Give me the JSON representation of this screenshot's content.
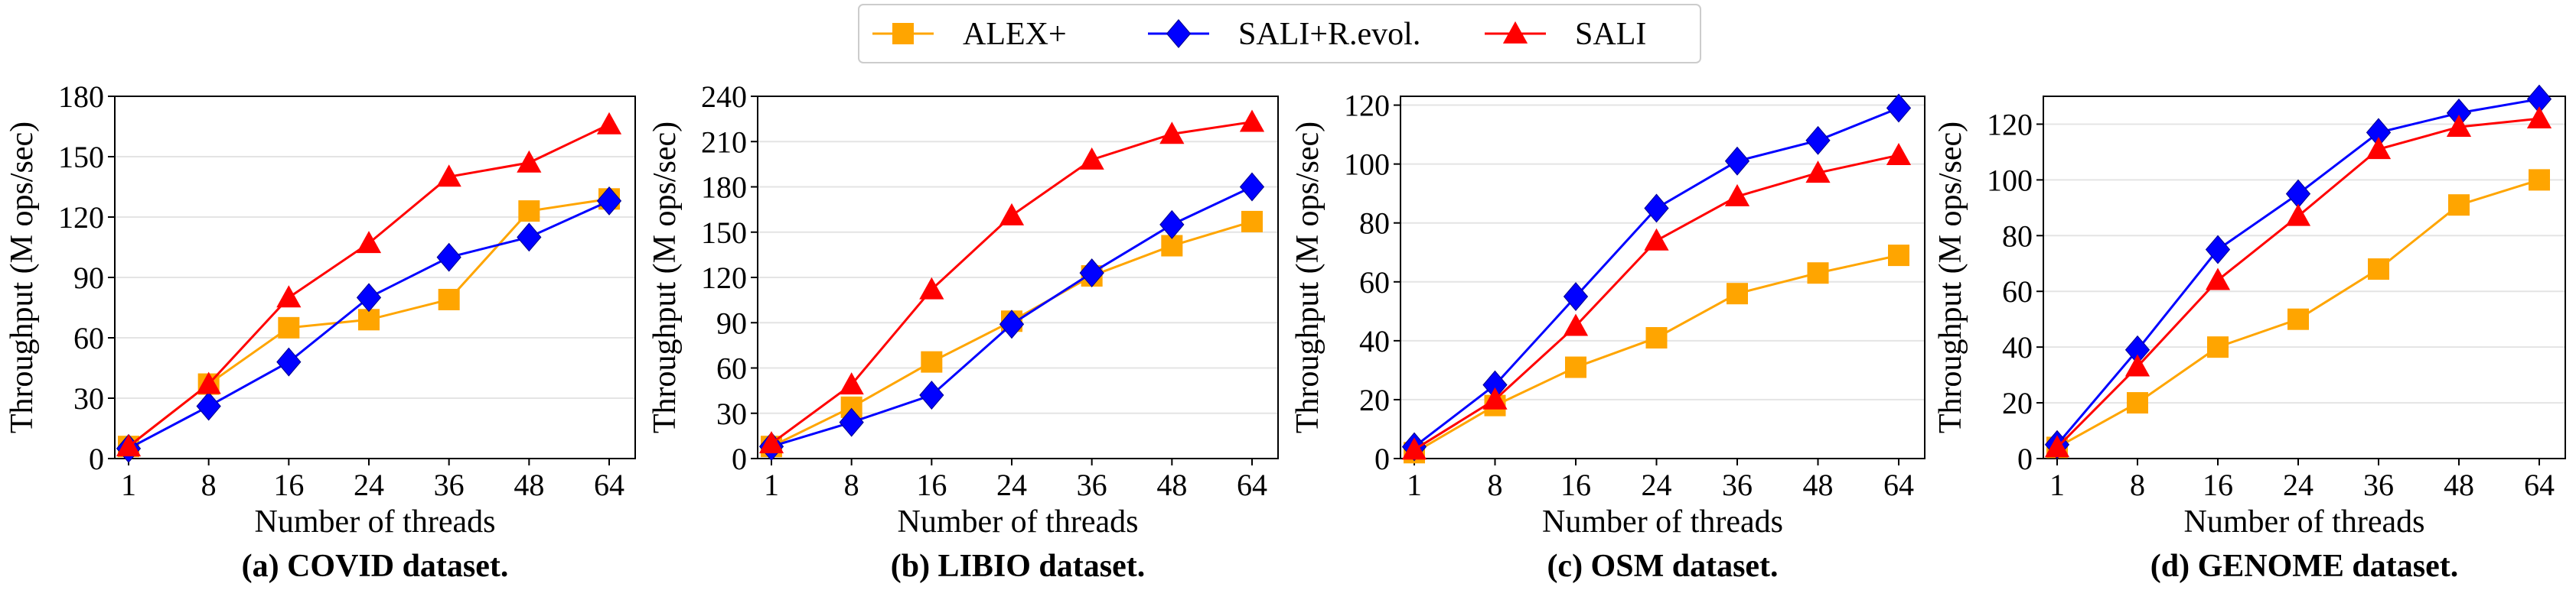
{
  "legend": [
    {
      "name": "ALEX+",
      "color": "#FFA500",
      "marker": "square"
    },
    {
      "name": "SALI+R.evol.",
      "color": "#0000FF",
      "marker": "diamond"
    },
    {
      "name": "SALI",
      "color": "#FF0000",
      "marker": "triangle"
    }
  ],
  "chart_data": [
    {
      "type": "line",
      "title": "(a) COVID dataset.",
      "xlabel": "Number of threads",
      "ylabel": "Throughput (M ops/sec)",
      "x": [
        1,
        8,
        16,
        24,
        36,
        48,
        64
      ],
      "x_ticks": [
        "1",
        "8",
        "16",
        "24",
        "36",
        "48",
        "64"
      ],
      "ylim": [
        0,
        180
      ],
      "y_ticks": [
        0,
        30,
        60,
        90,
        120,
        150,
        180
      ],
      "series": [
        {
          "name": "ALEX+",
          "values": [
            6,
            37,
            65,
            69,
            79,
            123,
            129
          ]
        },
        {
          "name": "SALI+R.evol.",
          "values": [
            5,
            26,
            48,
            80,
            100,
            110,
            128
          ]
        },
        {
          "name": "SALI",
          "values": [
            6,
            37,
            80,
            107,
            140,
            147,
            166
          ]
        }
      ]
    },
    {
      "type": "line",
      "title": "(b) LIBIO dataset.",
      "xlabel": "Number of threads",
      "ylabel": "Throughput (M ops/sec)",
      "x": [
        1,
        8,
        16,
        24,
        36,
        48,
        64
      ],
      "x_ticks": [
        "1",
        "8",
        "16",
        "24",
        "36",
        "48",
        "64"
      ],
      "ylim": [
        0,
        240
      ],
      "y_ticks": [
        0,
        30,
        60,
        90,
        120,
        150,
        180,
        210,
        240
      ],
      "series": [
        {
          "name": "ALEX+",
          "values": [
            8,
            34,
            64,
            91,
            121,
            141,
            157
          ]
        },
        {
          "name": "SALI+R.evol.",
          "values": [
            8,
            24,
            42,
            89,
            123,
            155,
            180
          ]
        },
        {
          "name": "SALI",
          "values": [
            10,
            49,
            112,
            161,
            198,
            215,
            223
          ]
        }
      ]
    },
    {
      "type": "line",
      "title": "(c) OSM dataset.",
      "xlabel": "Number of threads",
      "ylabel": "Throughput (M ops/sec)",
      "x": [
        1,
        8,
        16,
        24,
        36,
        48,
        64
      ],
      "x_ticks": [
        "1",
        "8",
        "16",
        "24",
        "36",
        "48",
        "64"
      ],
      "ylim": [
        0,
        123
      ],
      "y_ticks": [
        0,
        20,
        40,
        60,
        80,
        100,
        120
      ],
      "series": [
        {
          "name": "ALEX+",
          "values": [
            2,
            18,
            31,
            41,
            56,
            63,
            69
          ]
        },
        {
          "name": "SALI+R.evol.",
          "values": [
            4,
            25,
            55,
            85,
            101,
            108,
            119
          ]
        },
        {
          "name": "SALI",
          "values": [
            3,
            20,
            45,
            74,
            89,
            97,
            103
          ]
        }
      ]
    },
    {
      "type": "line",
      "title": "(d) GENOME dataset.",
      "xlabel": "Number of threads",
      "ylabel": "Throughput (M ops/sec)",
      "x": [
        1,
        8,
        16,
        24,
        36,
        48,
        64
      ],
      "x_ticks": [
        "1",
        "8",
        "16",
        "24",
        "36",
        "48",
        "64"
      ],
      "ylim": [
        0,
        130
      ],
      "y_ticks": [
        0,
        20,
        40,
        60,
        80,
        100,
        120
      ],
      "series": [
        {
          "name": "ALEX+",
          "values": [
            4,
            20,
            40,
            50,
            68,
            91,
            100
          ]
        },
        {
          "name": "SALI+R.evol.",
          "values": [
            5,
            39,
            75,
            95,
            117,
            124,
            129
          ]
        },
        {
          "name": "SALI",
          "values": [
            4,
            33,
            64,
            87,
            111,
            119,
            122
          ]
        }
      ]
    }
  ]
}
